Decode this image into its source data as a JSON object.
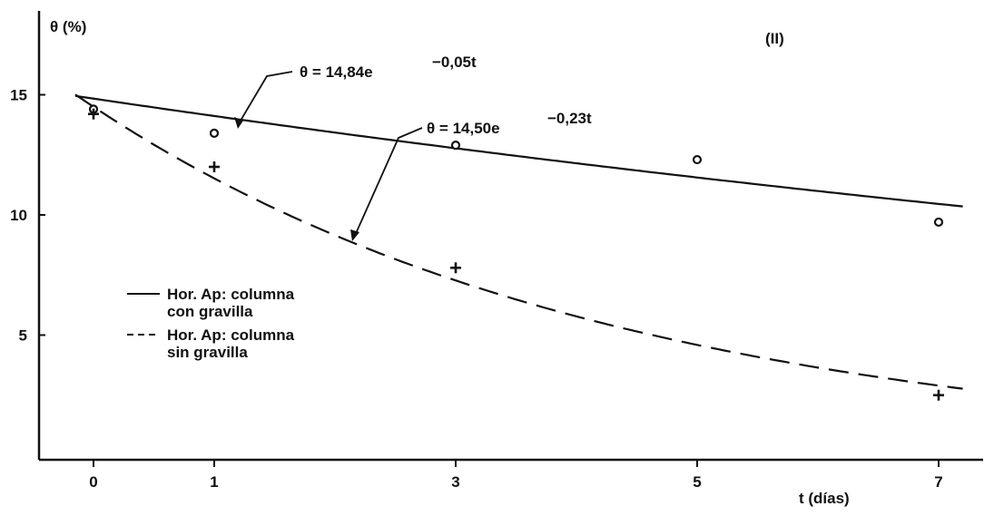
{
  "panel_label": "(II)",
  "chart_data": {
    "type": "line",
    "ylabel": "θ (%)",
    "xlabel": "t (días)",
    "xlim": [
      -0.5,
      7.2
    ],
    "ylim": [
      0,
      18.5
    ],
    "xticks": [
      0,
      1,
      3,
      5,
      7
    ],
    "xtick_labels": [
      "0",
      "1",
      "3",
      "5",
      "7"
    ],
    "yticks": [
      5,
      10,
      15
    ],
    "ytick_labels": [
      "5",
      "10",
      "15"
    ],
    "grid": false,
    "series": [
      {
        "name": "Hor. Ap: columna con gravilla",
        "legend_lines": [
          "Hor. Ap: columna",
          "con gravilla"
        ],
        "style": "solid",
        "marker": "dot",
        "equation": {
          "base": "θ = 14,84e",
          "exponent": "−0,05t"
        },
        "fit": {
          "a": 14.84,
          "b": 0.05
        },
        "points": [
          {
            "x": 0,
            "y": 14.4
          },
          {
            "x": 1,
            "y": 13.4
          },
          {
            "x": 3,
            "y": 12.9
          },
          {
            "x": 5,
            "y": 12.3
          },
          {
            "x": 7,
            "y": 9.7
          }
        ]
      },
      {
        "name": "Hor. Ap: columna sin gravilla",
        "legend_lines": [
          "Hor. Ap: columna",
          "sin gravilla"
        ],
        "style": "dashed",
        "marker": "plus",
        "equation": {
          "base": "θ = 14,50e",
          "exponent": "−0,23t"
        },
        "fit": {
          "a": 14.5,
          "b": 0.23
        },
        "points": [
          {
            "x": 0,
            "y": 14.2
          },
          {
            "x": 1,
            "y": 12.0
          },
          {
            "x": 3,
            "y": 7.8
          },
          {
            "x": 7,
            "y": 2.5
          }
        ]
      }
    ]
  }
}
